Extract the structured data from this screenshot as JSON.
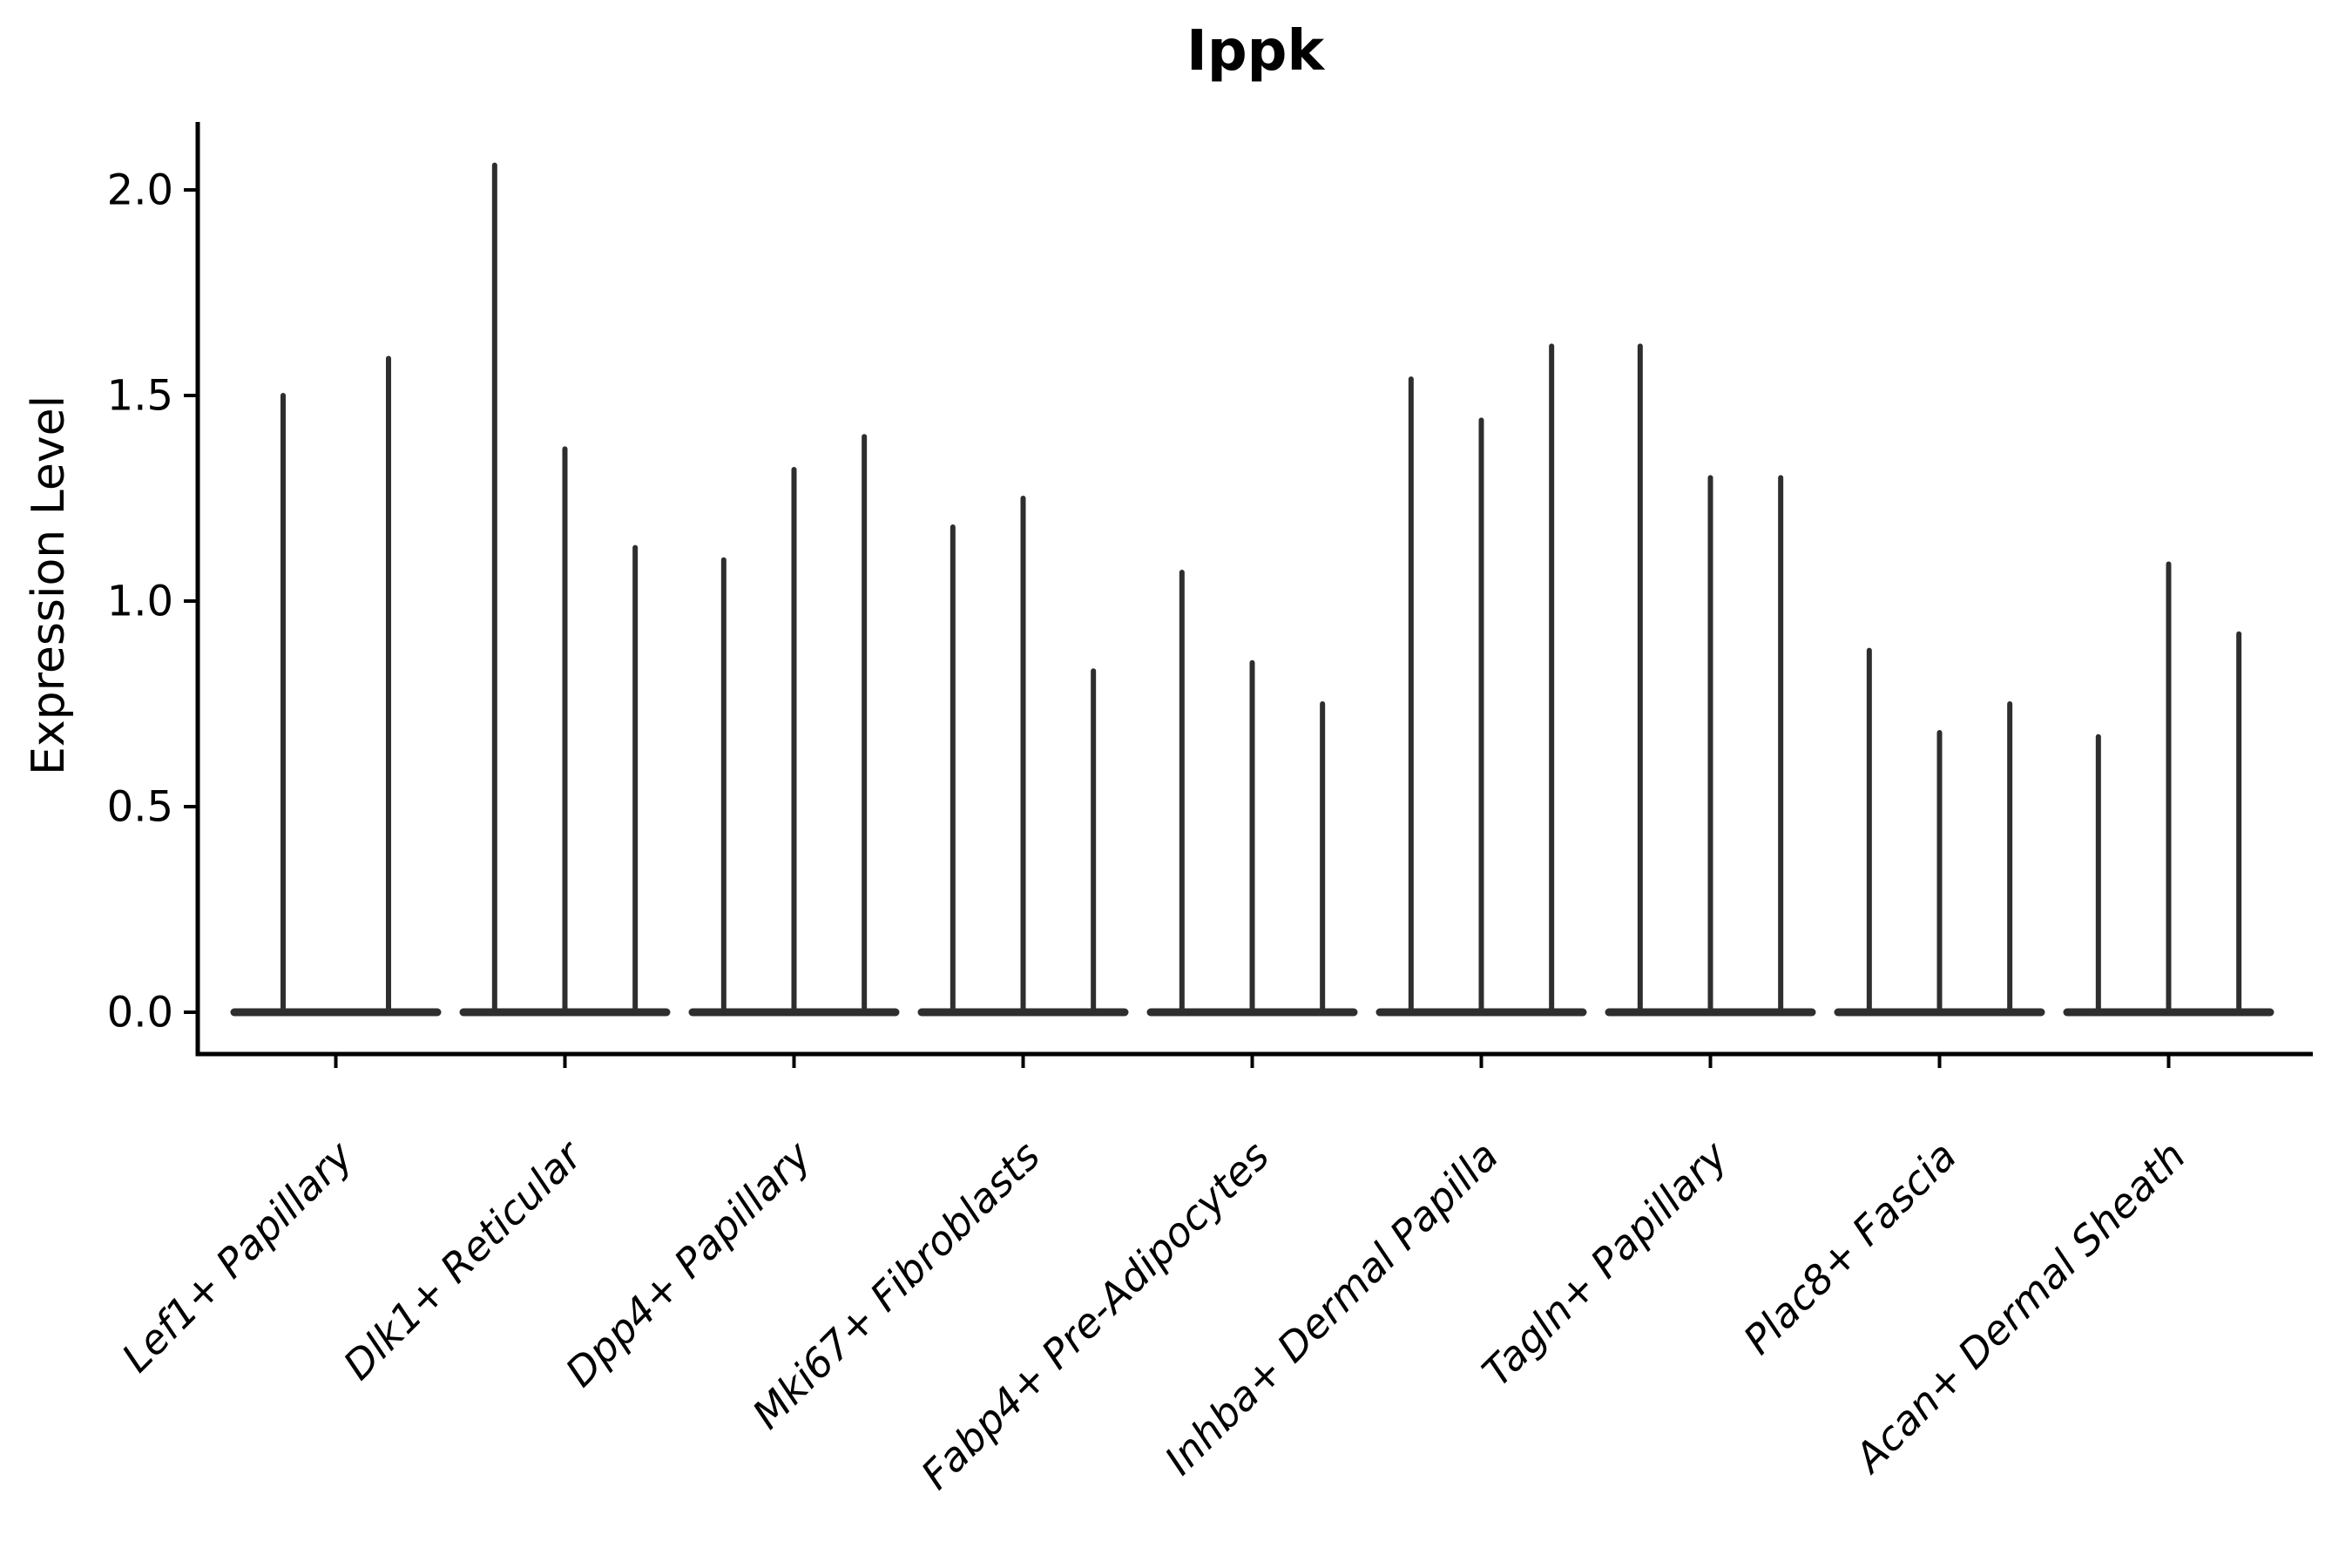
{
  "title": "Ippk",
  "y_axis_label": "Expression Level",
  "chart_data": {
    "type": "violin",
    "title": "Ippk",
    "xlabel": "",
    "ylabel": "Expression Level",
    "ylim": [
      0.0,
      2.1
    ],
    "yticks": [
      0.0,
      0.5,
      1.0,
      1.5,
      2.0
    ],
    "ytick_labels": [
      "0.0",
      "0.5",
      "1.0",
      "1.5",
      "2.0"
    ],
    "grid": false,
    "legend_position": "none",
    "violin_style": "mass concentrated at 0 with a thin vertical tail rising to the maximum value; body renders as a flat dark bar at y=0 plus a thin spike per violin",
    "violin_color": "#2e2e2e",
    "axis_color": "#000000",
    "categories": [
      "Lef1+ Papillary",
      "Dlk1+ Reticular",
      "Dpp4+ Papillary",
      "Mki67+ Fibroblasts",
      "Fabp4+ Pre-Adipocytes",
      "Inhba+ Dermal Papilla",
      "Tagln+ Papillary",
      "Plac8+ Fascia",
      "Acan+ Dermal Sheath"
    ],
    "groups": [
      {
        "category": "Lef1+ Papillary",
        "violin_max_values": [
          1.5,
          1.59
        ],
        "baseline_value": 0.0
      },
      {
        "category": "Dlk1+ Reticular",
        "violin_max_values": [
          2.06,
          1.37,
          1.13
        ],
        "baseline_value": 0.0
      },
      {
        "category": "Dpp4+ Papillary",
        "violin_max_values": [
          1.1,
          1.32,
          1.4
        ],
        "baseline_value": 0.0
      },
      {
        "category": "Mki67+ Fibroblasts",
        "violin_max_values": [
          1.18,
          1.25,
          0.83
        ],
        "baseline_value": 0.0
      },
      {
        "category": "Fabp4+ Pre-Adipocytes",
        "violin_max_values": [
          1.07,
          0.85,
          0.75
        ],
        "baseline_value": 0.0
      },
      {
        "category": "Inhba+ Dermal Papilla",
        "violin_max_values": [
          1.54,
          1.44,
          1.62
        ],
        "baseline_value": 0.0
      },
      {
        "category": "Tagln+ Papillary",
        "violin_max_values": [
          1.62,
          1.3,
          1.3
        ],
        "baseline_value": 0.0
      },
      {
        "category": "Plac8+ Fascia",
        "violin_max_values": [
          0.88,
          0.68,
          0.75
        ],
        "baseline_value": 0.0
      },
      {
        "category": "Acan+ Dermal Sheath",
        "violin_max_values": [
          0.67,
          1.09,
          0.92
        ],
        "baseline_value": 0.0
      }
    ]
  }
}
